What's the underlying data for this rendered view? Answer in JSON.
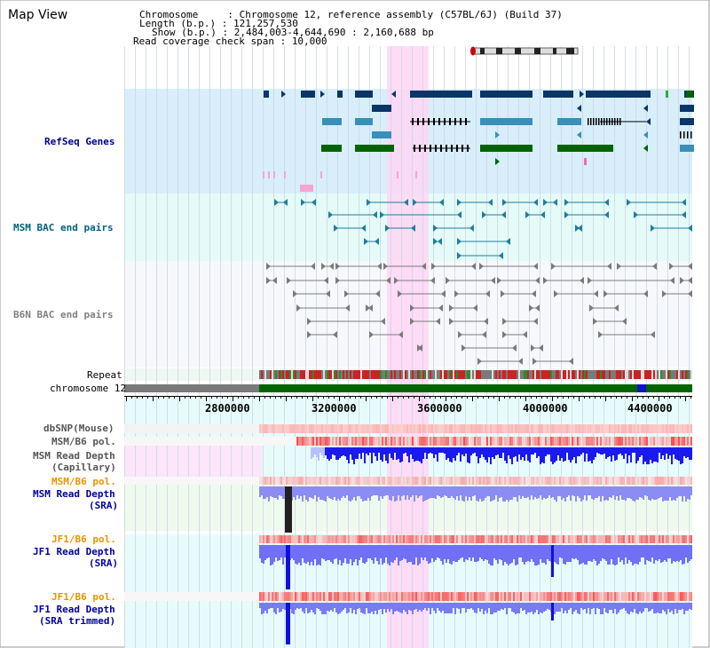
{
  "page": {
    "title": "Map View"
  },
  "info": {
    "chromosome_label": "Chromosome     : ",
    "chromosome_value": "Chromosome 12, reference assembly (C57BL/6J) (Build 37)",
    "length_label": "Length (b.p.) : ",
    "length_value": "121,257,530",
    "show_label": "Show (b.p.) : ",
    "show_value": "2,484,003-4,644,690 : 2,160,688 bp",
    "coverage_label": "Read coverage check span : ",
    "coverage_value": "10,000"
  },
  "tracks": {
    "refseq": "RefSeq Genes",
    "msm_bac": "MSM BAC end pairs",
    "b6n_bac": "B6N BAC end pairs",
    "repeat": "Repeat",
    "chromosome": "chromosome 12",
    "dbsnp": "dbSNP(Mouse)",
    "msm_b6_pol_1": "MSM/B6 pol.",
    "msm_depth_cap_1": "MSM Read Depth",
    "msm_depth_cap_2": "(Capillary)",
    "msm_b6_pol_2": "MSM/B6 pol.",
    "msm_depth_sra_1": "MSM Read Depth",
    "msm_depth_sra_2": "(SRA)",
    "jf1_b6_pol_1": "JF1/B6 pol.",
    "jf1_depth_sra_1": "JF1 Read Depth",
    "jf1_depth_sra_2": "(SRA)",
    "jf1_b6_pol_2": "JF1/B6 pol.",
    "jf1_depth_trim_1": "JF1 Read Depth",
    "jf1_depth_trim_2": "(SRA trimmed)"
  },
  "axis": {
    "ticks": [
      "2800000",
      "3200000",
      "3600000",
      "4000000",
      "4400000"
    ]
  },
  "colors": {
    "refseq_label": "#00008b",
    "msm_bac_label": "#006080",
    "b6n_bac_label": "#808080",
    "pol_label": "#e69500",
    "depth_label": "#00009c",
    "highlight": "#ffd6f5",
    "gene_dark": "#0a3566",
    "gene_light": "#3a8fb8",
    "gene_green": "#006400",
    "chromosome_green": "#006400",
    "chromosome_gray": "#7a7a7a"
  }
}
